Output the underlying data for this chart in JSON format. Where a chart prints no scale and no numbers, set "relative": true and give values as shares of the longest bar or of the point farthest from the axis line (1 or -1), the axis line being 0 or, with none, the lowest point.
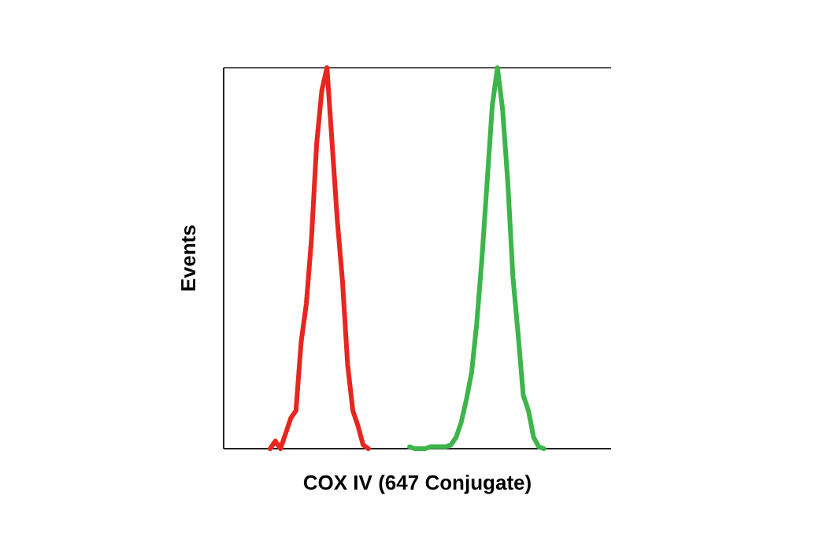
{
  "chart_data": {
    "type": "line",
    "relative": true,
    "xlabel": "COX IV (647 Conjugate)",
    "ylabel": "Events",
    "marker": "none",
    "line_style": "solid",
    "categories": [
      null,
      null,
      null,
      null,
      null,
      null,
      null,
      null,
      null,
      null,
      null,
      null,
      null,
      null,
      null,
      null,
      null,
      null,
      null,
      null,
      null,
      null,
      null,
      null,
      null,
      null,
      null,
      null,
      null,
      null,
      null,
      null,
      null,
      null,
      null,
      null,
      null,
      null,
      null,
      null,
      null,
      null,
      null,
      null,
      null,
      null,
      null,
      null,
      null,
      null,
      null,
      null,
      null,
      null,
      null,
      null,
      null,
      null,
      null,
      null,
      null,
      null,
      null,
      null,
      null,
      null,
      null,
      null,
      null,
      null,
      null,
      null,
      null,
      null,
      null,
      null
    ],
    "series": [
      {
        "color": "#e8251f",
        "values": [
          null,
          null,
          null,
          null,
          null,
          null,
          null,
          null,
          null,
          0,
          0.02,
          0,
          0.04,
          0.08,
          0.1,
          0.28,
          0.38,
          0.55,
          0.8,
          0.94,
          1,
          0.8,
          0.6,
          0.44,
          0.22,
          0.1,
          0.06,
          0.01,
          0,
          null,
          null,
          null,
          null,
          null,
          null,
          null,
          null,
          null,
          null,
          null,
          null,
          null,
          null,
          null,
          null,
          null,
          null,
          null,
          null,
          null,
          null,
          null,
          null,
          null,
          null,
          null,
          null,
          null,
          null,
          null,
          null,
          null,
          null,
          null,
          null,
          null,
          null,
          null,
          null,
          null,
          null,
          null,
          null,
          null,
          null,
          null
        ]
      },
      {
        "color": "#3cb54a",
        "values": [
          null,
          null,
          null,
          null,
          null,
          null,
          null,
          null,
          null,
          null,
          null,
          null,
          null,
          null,
          null,
          null,
          null,
          null,
          null,
          null,
          null,
          null,
          null,
          null,
          null,
          null,
          null,
          null,
          null,
          null,
          null,
          null,
          null,
          null,
          null,
          null,
          0.005,
          0,
          0,
          0,
          0.005,
          0.005,
          0.005,
          0.005,
          0.01,
          0.03,
          0.07,
          0.13,
          0.2,
          0.33,
          0.5,
          0.7,
          0.9,
          1,
          0.89,
          0.7,
          0.45,
          0.3,
          0.14,
          0.1,
          0.03,
          0.005,
          0,
          null,
          null,
          null,
          null,
          null,
          null,
          null,
          null,
          null,
          null,
          null,
          null,
          null
        ]
      }
    ]
  }
}
